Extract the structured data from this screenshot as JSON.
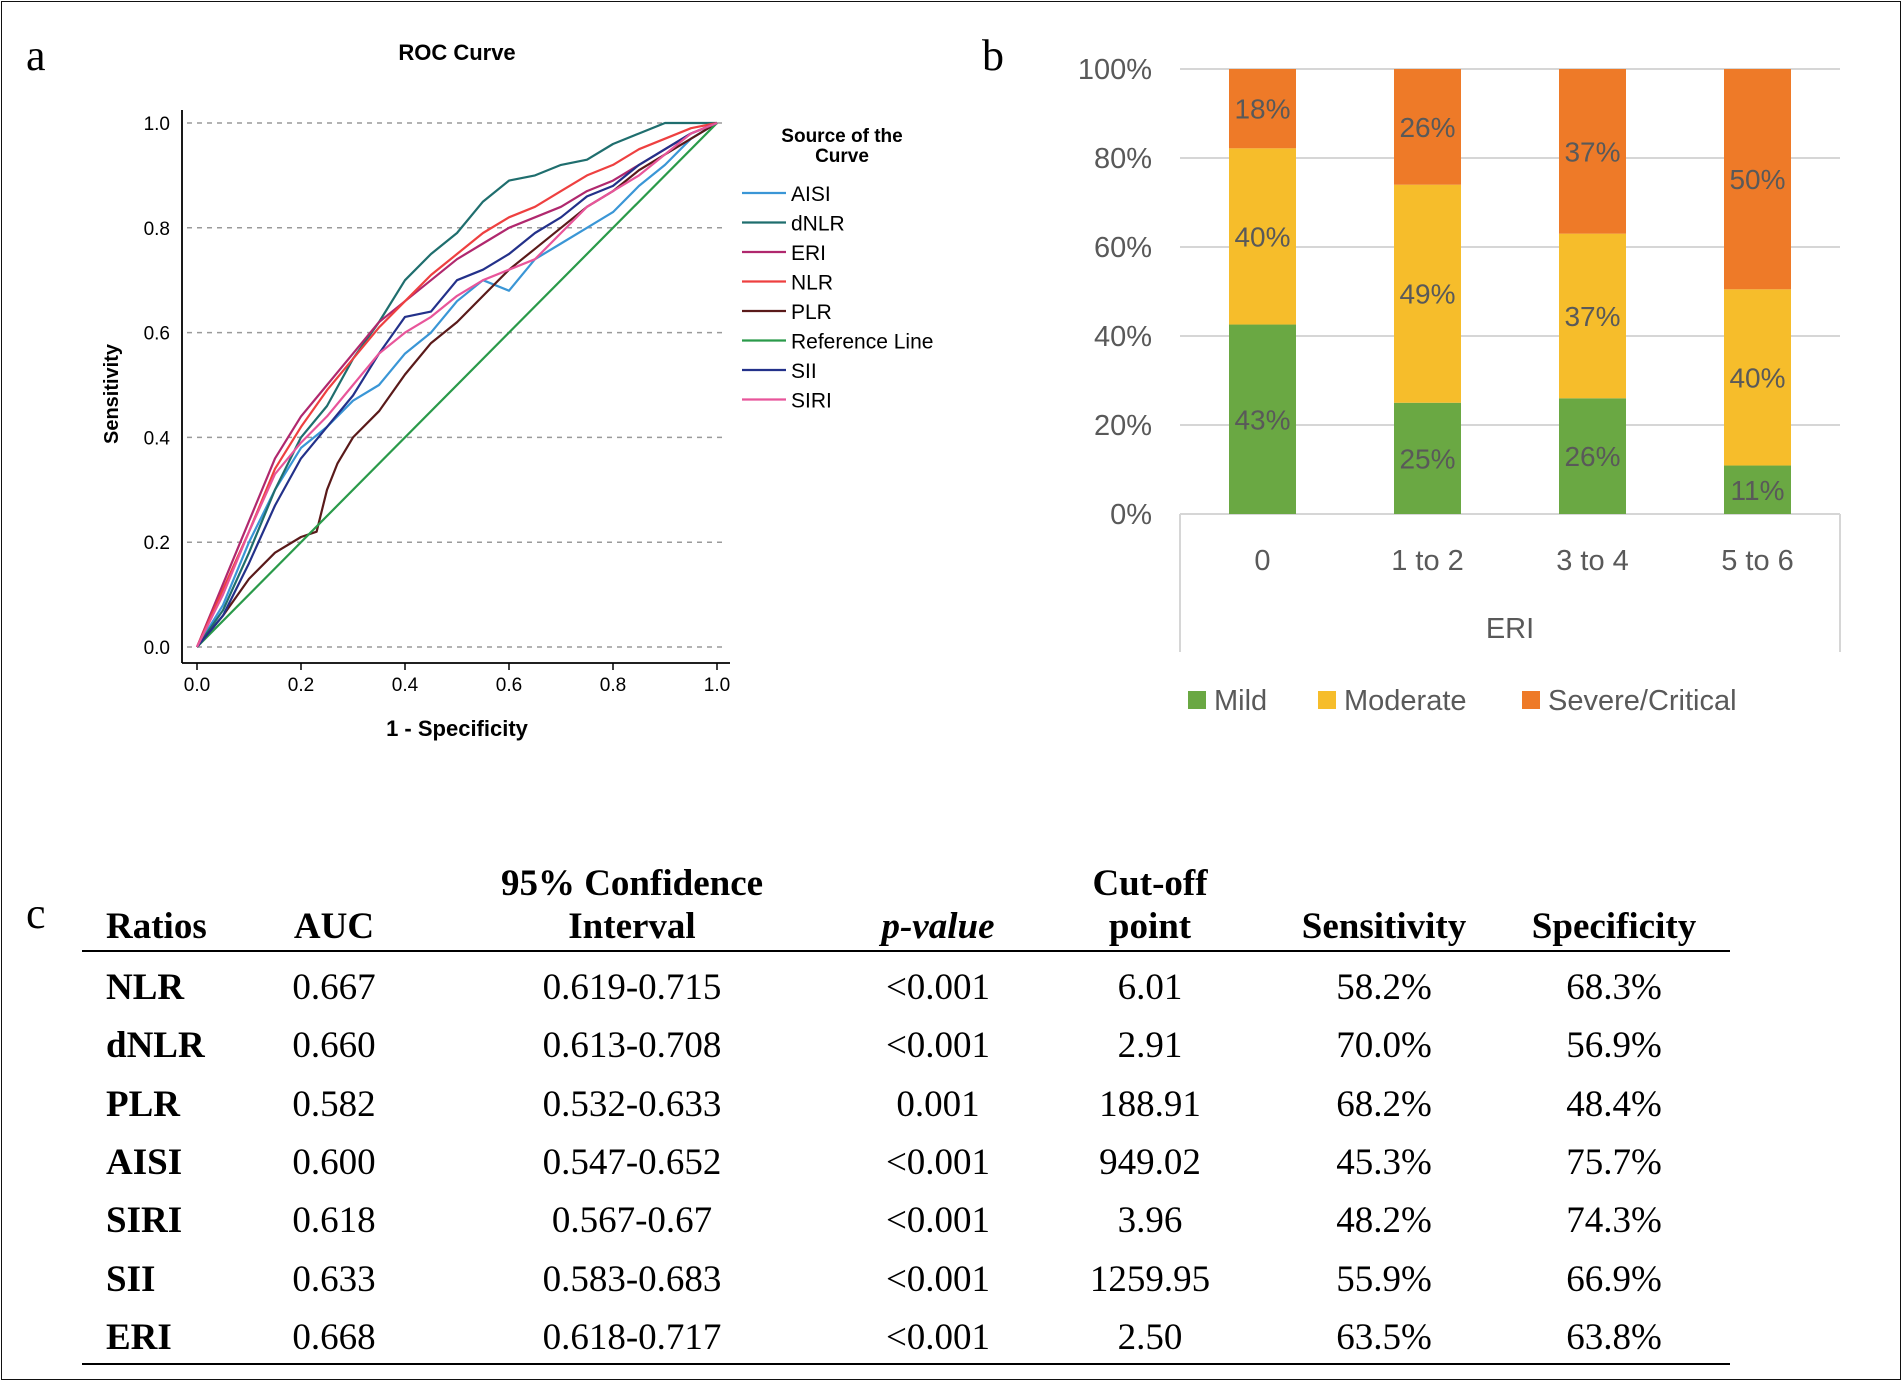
{
  "panels": {
    "a": "a",
    "b": "b",
    "c": "c"
  },
  "chart_data": [
    {
      "type": "line",
      "title": "ROC Curve",
      "xlabel": "1 - Specificity",
      "ylabel": "Sensitivity",
      "xlim": [
        0,
        1
      ],
      "ylim": [
        0,
        1
      ],
      "xticks": [
        "0.0",
        "0.2",
        "0.4",
        "0.6",
        "0.8",
        "1.0"
      ],
      "yticks": [
        "0.0",
        "0.2",
        "0.4",
        "0.6",
        "0.8",
        "1.0"
      ],
      "legend_title": "Source of the Curve",
      "legend_position": "right",
      "grid": "horizontal dashed",
      "series": [
        {
          "name": "AISI",
          "color": "#3a96d6",
          "points": [
            [
              0,
              0
            ],
            [
              0.05,
              0.08
            ],
            [
              0.1,
              0.2
            ],
            [
              0.15,
              0.3
            ],
            [
              0.2,
              0.38
            ],
            [
              0.25,
              0.42
            ],
            [
              0.3,
              0.47
            ],
            [
              0.35,
              0.5
            ],
            [
              0.4,
              0.56
            ],
            [
              0.45,
              0.6
            ],
            [
              0.5,
              0.66
            ],
            [
              0.55,
              0.7
            ],
            [
              0.6,
              0.68
            ],
            [
              0.65,
              0.74
            ],
            [
              0.7,
              0.77
            ],
            [
              0.75,
              0.8
            ],
            [
              0.8,
              0.83
            ],
            [
              0.85,
              0.88
            ],
            [
              0.9,
              0.92
            ],
            [
              0.95,
              0.97
            ],
            [
              1,
              1
            ]
          ]
        },
        {
          "name": "dNLR",
          "color": "#1f6e6e",
          "points": [
            [
              0,
              0
            ],
            [
              0.05,
              0.07
            ],
            [
              0.1,
              0.18
            ],
            [
              0.15,
              0.3
            ],
            [
              0.2,
              0.4
            ],
            [
              0.25,
              0.46
            ],
            [
              0.3,
              0.55
            ],
            [
              0.35,
              0.62
            ],
            [
              0.4,
              0.7
            ],
            [
              0.45,
              0.75
            ],
            [
              0.5,
              0.79
            ],
            [
              0.55,
              0.85
            ],
            [
              0.6,
              0.89
            ],
            [
              0.65,
              0.9
            ],
            [
              0.7,
              0.92
            ],
            [
              0.75,
              0.93
            ],
            [
              0.8,
              0.96
            ],
            [
              0.85,
              0.98
            ],
            [
              0.9,
              1
            ],
            [
              1,
              1
            ]
          ]
        },
        {
          "name": "ERI",
          "color": "#b0286e",
          "points": [
            [
              0,
              0
            ],
            [
              0.05,
              0.12
            ],
            [
              0.1,
              0.24
            ],
            [
              0.15,
              0.36
            ],
            [
              0.2,
              0.44
            ],
            [
              0.25,
              0.5
            ],
            [
              0.3,
              0.56
            ],
            [
              0.35,
              0.62
            ],
            [
              0.4,
              0.66
            ],
            [
              0.45,
              0.7
            ],
            [
              0.5,
              0.74
            ],
            [
              0.55,
              0.77
            ],
            [
              0.6,
              0.8
            ],
            [
              0.65,
              0.82
            ],
            [
              0.7,
              0.84
            ],
            [
              0.75,
              0.87
            ],
            [
              0.8,
              0.89
            ],
            [
              0.85,
              0.92
            ],
            [
              0.9,
              0.95
            ],
            [
              0.95,
              0.98
            ],
            [
              1,
              1
            ]
          ]
        },
        {
          "name": "NLR",
          "color": "#ee4040",
          "points": [
            [
              0,
              0
            ],
            [
              0.05,
              0.11
            ],
            [
              0.1,
              0.22
            ],
            [
              0.15,
              0.34
            ],
            [
              0.2,
              0.42
            ],
            [
              0.25,
              0.49
            ],
            [
              0.3,
              0.55
            ],
            [
              0.35,
              0.61
            ],
            [
              0.4,
              0.66
            ],
            [
              0.45,
              0.71
            ],
            [
              0.5,
              0.75
            ],
            [
              0.55,
              0.79
            ],
            [
              0.6,
              0.82
            ],
            [
              0.65,
              0.84
            ],
            [
              0.7,
              0.87
            ],
            [
              0.75,
              0.9
            ],
            [
              0.8,
              0.92
            ],
            [
              0.85,
              0.95
            ],
            [
              0.9,
              0.97
            ],
            [
              0.95,
              0.99
            ],
            [
              1,
              1
            ]
          ]
        },
        {
          "name": "PLR",
          "color": "#5a1a1a",
          "points": [
            [
              0,
              0
            ],
            [
              0.05,
              0.06
            ],
            [
              0.1,
              0.13
            ],
            [
              0.15,
              0.18
            ],
            [
              0.2,
              0.21
            ],
            [
              0.23,
              0.22
            ],
            [
              0.25,
              0.3
            ],
            [
              0.27,
              0.35
            ],
            [
              0.3,
              0.4
            ],
            [
              0.35,
              0.45
            ],
            [
              0.4,
              0.52
            ],
            [
              0.45,
              0.58
            ],
            [
              0.5,
              0.62
            ],
            [
              0.55,
              0.67
            ],
            [
              0.6,
              0.72
            ],
            [
              0.65,
              0.76
            ],
            [
              0.7,
              0.8
            ],
            [
              0.75,
              0.84
            ],
            [
              0.8,
              0.87
            ],
            [
              0.85,
              0.91
            ],
            [
              0.9,
              0.94
            ],
            [
              0.95,
              0.97
            ],
            [
              1,
              1
            ]
          ]
        },
        {
          "name": "Reference Line",
          "color": "#2a9a4a",
          "points": [
            [
              0,
              0
            ],
            [
              1,
              1
            ]
          ]
        },
        {
          "name": "SII",
          "color": "#23318a",
          "points": [
            [
              0,
              0
            ],
            [
              0.05,
              0.06
            ],
            [
              0.1,
              0.16
            ],
            [
              0.15,
              0.27
            ],
            [
              0.2,
              0.36
            ],
            [
              0.25,
              0.42
            ],
            [
              0.3,
              0.48
            ],
            [
              0.35,
              0.56
            ],
            [
              0.4,
              0.63
            ],
            [
              0.45,
              0.64
            ],
            [
              0.5,
              0.7
            ],
            [
              0.55,
              0.72
            ],
            [
              0.6,
              0.75
            ],
            [
              0.65,
              0.79
            ],
            [
              0.7,
              0.82
            ],
            [
              0.75,
              0.86
            ],
            [
              0.8,
              0.88
            ],
            [
              0.85,
              0.92
            ],
            [
              0.9,
              0.95
            ],
            [
              0.95,
              0.98
            ],
            [
              1,
              1
            ]
          ]
        },
        {
          "name": "SIRI",
          "color": "#e8559a",
          "points": [
            [
              0,
              0
            ],
            [
              0.05,
              0.1
            ],
            [
              0.1,
              0.22
            ],
            [
              0.15,
              0.33
            ],
            [
              0.2,
              0.39
            ],
            [
              0.25,
              0.44
            ],
            [
              0.3,
              0.5
            ],
            [
              0.35,
              0.56
            ],
            [
              0.4,
              0.6
            ],
            [
              0.45,
              0.63
            ],
            [
              0.5,
              0.67
            ],
            [
              0.55,
              0.7
            ],
            [
              0.6,
              0.72
            ],
            [
              0.65,
              0.74
            ],
            [
              0.7,
              0.79
            ],
            [
              0.75,
              0.84
            ],
            [
              0.8,
              0.87
            ],
            [
              0.85,
              0.9
            ],
            [
              0.9,
              0.94
            ],
            [
              0.95,
              0.98
            ],
            [
              1,
              1
            ]
          ]
        }
      ]
    },
    {
      "type": "bar",
      "stacked": true,
      "xlabel": "ERI",
      "categories": [
        "0",
        "1 to 2",
        "3 to 4",
        "5 to 6"
      ],
      "yticks": [
        "0%",
        "20%",
        "40%",
        "60%",
        "80%",
        "100%"
      ],
      "ylim": [
        0,
        100
      ],
      "legend_position": "bottom",
      "series": [
        {
          "name": "Mild",
          "color": "#6aa843",
          "values": [
            43,
            25,
            26,
            11
          ],
          "labels": [
            "43%",
            "25%",
            "26%",
            "11%"
          ]
        },
        {
          "name": "Moderate",
          "color": "#f6bd2b",
          "values": [
            40,
            49,
            37,
            40
          ],
          "labels": [
            "40%",
            "49%",
            "37%",
            "40%"
          ]
        },
        {
          "name": "Severe/Critical",
          "color": "#ee7a28",
          "values": [
            18,
            26,
            37,
            50
          ],
          "labels": [
            "18%",
            "26%",
            "37%",
            "50%"
          ]
        }
      ]
    },
    {
      "type": "table",
      "headers": {
        "ratios": "Ratios",
        "auc": "AUC",
        "ci_line1": "95% Confidence",
        "ci_line2": "Interval",
        "p": "p-value",
        "cut_line1": "Cut-off",
        "cut_line2": "point",
        "sens": "Sensitivity",
        "spec": "Specificity"
      },
      "rows": [
        {
          "ratio": "NLR",
          "auc": "0.667",
          "ci": "0.619-0.715",
          "p": "<0.001",
          "cut": "6.01",
          "sens": "58.2%",
          "spec": "68.3%"
        },
        {
          "ratio": "dNLR",
          "auc": "0.660",
          "ci": "0.613-0.708",
          "p": "<0.001",
          "cut": "2.91",
          "sens": "70.0%",
          "spec": "56.9%"
        },
        {
          "ratio": "PLR",
          "auc": "0.582",
          "ci": "0.532-0.633",
          "p": "0.001",
          "cut": "188.91",
          "sens": "68.2%",
          "spec": "48.4%"
        },
        {
          "ratio": "AISI",
          "auc": "0.600",
          "ci": "0.547-0.652",
          "p": "<0.001",
          "cut": "949.02",
          "sens": "45.3%",
          "spec": "75.7%"
        },
        {
          "ratio": "SIRI",
          "auc": "0.618",
          "ci": "0.567-0.67",
          "p": "<0.001",
          "cut": "3.96",
          "sens": "48.2%",
          "spec": "74.3%"
        },
        {
          "ratio": "SII",
          "auc": "0.633",
          "ci": "0.583-0.683",
          "p": "<0.001",
          "cut": "1259.95",
          "sens": "55.9%",
          "spec": "66.9%"
        },
        {
          "ratio": "ERI",
          "auc": "0.668",
          "ci": "0.618-0.717",
          "p": "<0.001",
          "cut": "2.50",
          "sens": "63.5%",
          "spec": "63.8%"
        }
      ]
    }
  ]
}
